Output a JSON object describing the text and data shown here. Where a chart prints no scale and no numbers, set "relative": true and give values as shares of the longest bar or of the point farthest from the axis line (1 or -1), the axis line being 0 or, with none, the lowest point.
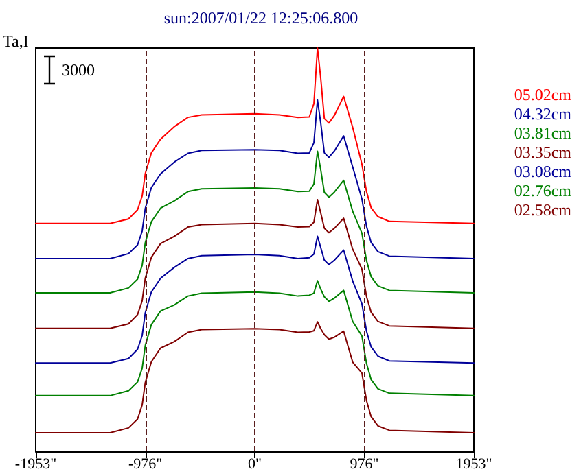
{
  "chart_data": {
    "type": "line",
    "title": "sun:2007/01/22 12:25:06.800",
    "ylabel": "Ta,I",
    "annotations": [
      "3000"
    ],
    "relative": true,
    "grid": false,
    "legend": "right",
    "marker": "none",
    "line_style": "solid",
    "x": [
      -1953,
      -1290,
      -1126,
      -1045,
      -1004,
      -976,
      -922,
      -840,
      -718,
      -596,
      -473,
      0,
      220,
      384,
      486,
      527,
      559,
      588,
      620,
      661,
      710,
      792,
      873,
      955,
      996,
      1037,
      1098,
      1200,
      1953
    ],
    "xlim": [
      -1953,
      1953
    ],
    "xticks": [
      {
        "value": -1953,
        "label": "-1953\""
      },
      {
        "value": -976,
        "label": "-976\""
      },
      {
        "value": 0,
        "label": "0\""
      },
      {
        "value": 976,
        "label": "976\""
      },
      {
        "value": 1953,
        "label": "1953\""
      }
    ],
    "ref_lines": [
      {
        "axis": "x",
        "value": -976,
        "color": "#5a1e1e",
        "line_style": "dashed"
      },
      {
        "axis": "x",
        "value": 0,
        "color": "#5a1e1e",
        "line_style": "dashed"
      },
      {
        "axis": "x",
        "value": 976,
        "color": "#5a1e1e",
        "line_style": "dashed"
      }
    ],
    "series": [
      {
        "name": "05.02cm",
        "color": "#ff0000",
        "values": [
          0.565,
          0.565,
          0.576,
          0.599,
          0.633,
          0.689,
          0.74,
          0.774,
          0.805,
          0.828,
          0.834,
          0.837,
          0.834,
          0.828,
          0.829,
          0.862,
          1,
          0.925,
          0.825,
          0.814,
          0.833,
          0.88,
          0.803,
          0.712,
          0.644,
          0.604,
          0.582,
          0.57,
          0.565
        ]
      },
      {
        "name": "04.32cm",
        "color": "#000099",
        "values": [
          0.478,
          0.478,
          0.49,
          0.512,
          0.546,
          0.603,
          0.654,
          0.688,
          0.717,
          0.739,
          0.746,
          0.748,
          0.746,
          0.739,
          0.74,
          0.765,
          0.871,
          0.814,
          0.74,
          0.729,
          0.745,
          0.782,
          0.705,
          0.626,
          0.558,
          0.518,
          0.495,
          0.484,
          0.478
        ]
      },
      {
        "name": "03.81cm",
        "color": "#008000",
        "values": [
          0.393,
          0.393,
          0.405,
          0.427,
          0.461,
          0.518,
          0.569,
          0.603,
          0.621,
          0.644,
          0.651,
          0.653,
          0.651,
          0.644,
          0.645,
          0.663,
          0.744,
          0.698,
          0.642,
          0.63,
          0.643,
          0.672,
          0.595,
          0.541,
          0.473,
          0.433,
          0.41,
          0.399,
          0.393
        ]
      },
      {
        "name": "03.35cm",
        "color": "#800000",
        "values": [
          0.305,
          0.305,
          0.316,
          0.339,
          0.373,
          0.43,
          0.481,
          0.515,
          0.533,
          0.556,
          0.562,
          0.565,
          0.562,
          0.556,
          0.557,
          0.568,
          0.624,
          0.591,
          0.553,
          0.542,
          0.553,
          0.578,
          0.501,
          0.452,
          0.384,
          0.345,
          0.322,
          0.311,
          0.305
        ]
      },
      {
        "name": "03.08cm",
        "color": "#000099",
        "values": [
          0.219,
          0.219,
          0.23,
          0.253,
          0.287,
          0.344,
          0.395,
          0.429,
          0.456,
          0.478,
          0.485,
          0.488,
          0.485,
          0.478,
          0.48,
          0.489,
          0.533,
          0.505,
          0.474,
          0.463,
          0.474,
          0.499,
          0.422,
          0.366,
          0.298,
          0.259,
          0.236,
          0.224,
          0.219
        ]
      },
      {
        "name": "02.76cm",
        "color": "#008000",
        "values": [
          0.138,
          0.138,
          0.15,
          0.172,
          0.206,
          0.263,
          0.314,
          0.348,
          0.363,
          0.385,
          0.392,
          0.395,
          0.392,
          0.385,
          0.387,
          0.392,
          0.423,
          0.402,
          0.383,
          0.372,
          0.38,
          0.399,
          0.322,
          0.286,
          0.218,
          0.178,
          0.155,
          0.144,
          0.138
        ]
      },
      {
        "name": "02.58cm",
        "color": "#800000",
        "values": [
          0.046,
          0.046,
          0.058,
          0.08,
          0.115,
          0.171,
          0.222,
          0.256,
          0.272,
          0.295,
          0.302,
          0.304,
          0.302,
          0.295,
          0.296,
          0.299,
          0.321,
          0.304,
          0.289,
          0.278,
          0.283,
          0.298,
          0.221,
          0.194,
          0.126,
          0.086,
          0.063,
          0.052,
          0.046
        ]
      }
    ]
  }
}
